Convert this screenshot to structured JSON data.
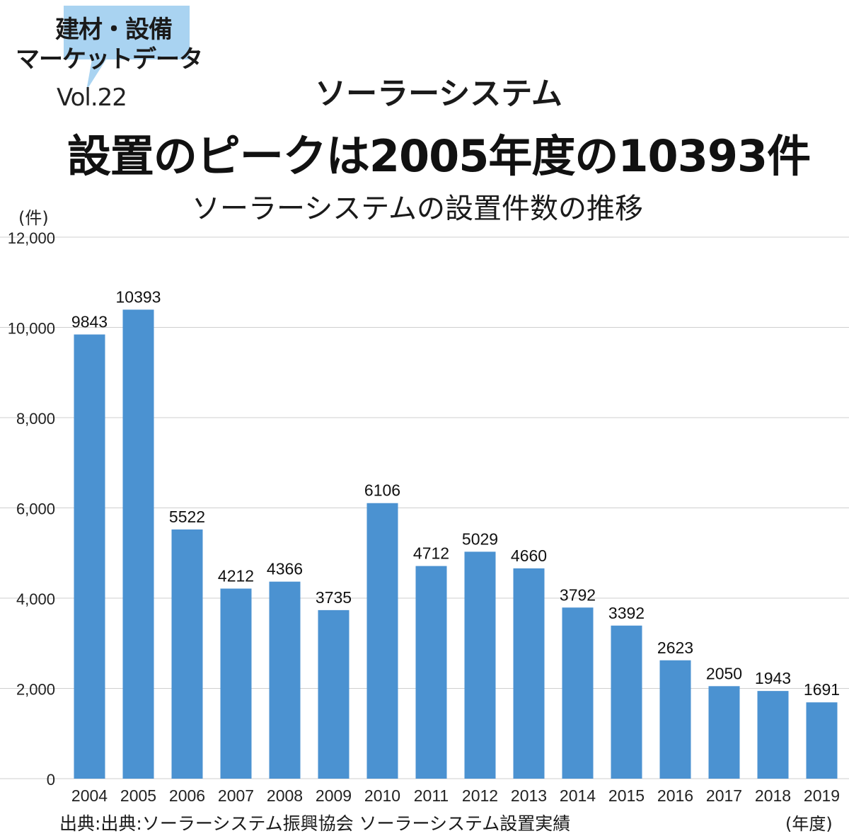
{
  "badge": {
    "line1": "建材・設備",
    "line2": "マーケットデータ",
    "bubble_color": "#a9d3f1"
  },
  "vol": "Vol.22",
  "subtitle": "ソーラーシステム",
  "headline": "設置のピークは2005年度の10393件",
  "unit_label": "(件)",
  "x_unit_label": "(年度)",
  "source": "出典:出典:ソーラーシステム振興協会 ソーラーシステム設置実績",
  "chart_data": {
    "type": "bar",
    "title": "ソーラーシステムの設置件数の推移",
    "ylabel": "(件)",
    "xlabel": "(年度)",
    "categories": [
      "2004",
      "2005",
      "2006",
      "2007",
      "2008",
      "2009",
      "2010",
      "2011",
      "2012",
      "2013",
      "2014",
      "2015",
      "2016",
      "2017",
      "2018",
      "2019"
    ],
    "values": [
      9843,
      10393,
      5522,
      4212,
      4366,
      3735,
      6106,
      4712,
      5029,
      4660,
      3792,
      3392,
      2623,
      2050,
      1943,
      1691
    ],
    "ylim": [
      0,
      12000
    ],
    "yticks": [
      0,
      2000,
      4000,
      6000,
      8000,
      10000,
      12000
    ],
    "ytick_labels": [
      "0",
      "2,000",
      "4,000",
      "6,000",
      "8,000",
      "10,000",
      "12,000"
    ],
    "grid": true,
    "bar_color": "#4b92d1",
    "grid_color": "#cfcfcf"
  }
}
